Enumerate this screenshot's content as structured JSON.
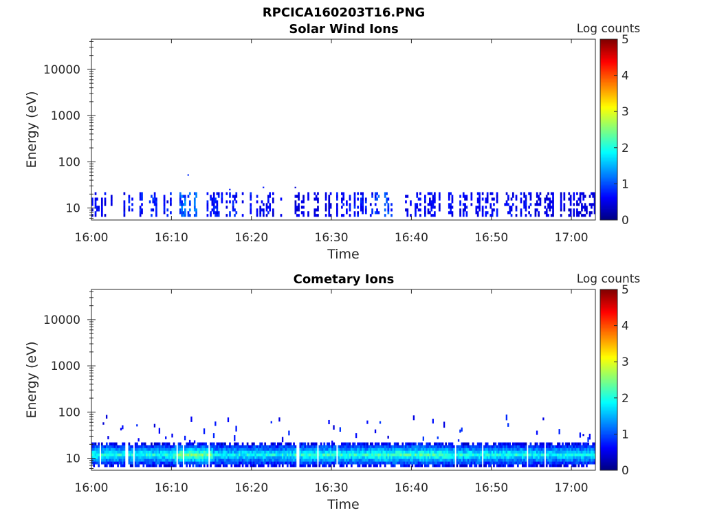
{
  "figure": {
    "title": "RPCICA160203T16.PNG"
  },
  "chart_data": [
    {
      "type": "heatmap",
      "title": "Solar Wind Ions",
      "xlabel": "Time",
      "ylabel": "Energy (eV)",
      "x_tick_labels": [
        "16:00",
        "16:10",
        "16:20",
        "16:30",
        "16:40",
        "16:50",
        "17:00"
      ],
      "y_tick_labels": [
        "10",
        "100",
        "1000",
        "10000"
      ],
      "y_scale": "log",
      "xlim": [
        "16:00",
        "17:03"
      ],
      "ylim": [
        5.5,
        45000
      ],
      "colorbar": {
        "label": "Log counts",
        "ticks": [
          "0",
          "1",
          "2",
          "3",
          "4",
          "5"
        ],
        "range": [
          0,
          5
        ],
        "colormap": "jet"
      },
      "band_eV": [
        6.5,
        22
      ],
      "level_segments": [
        {
          "start": "16:00",
          "end": "16:03",
          "level": 0.6
        },
        {
          "start": "16:04",
          "end": "16:10",
          "level": 0.7
        },
        {
          "start": "16:10",
          "end": "16:13",
          "level": 1.1
        },
        {
          "start": "16:14",
          "end": "16:20",
          "level": 0.7
        },
        {
          "start": "16:20",
          "end": "16:25",
          "level": 0.6
        },
        {
          "start": "16:25",
          "end": "16:30",
          "level": 0.5
        },
        {
          "start": "16:30",
          "end": "16:35",
          "level": 0.7
        },
        {
          "start": "16:35",
          "end": "16:38",
          "level": 0.9
        },
        {
          "start": "16:39",
          "end": "16:45",
          "level": 0.6
        },
        {
          "start": "16:45",
          "end": "16:55",
          "level": 0.6
        },
        {
          "start": "16:55",
          "end": "17:03",
          "level": 0.5
        }
      ],
      "gaps": [
        [
          "16:02.5",
          "16:04"
        ],
        [
          "16:38",
          "16:39"
        ]
      ]
    },
    {
      "type": "heatmap",
      "title": "Cometary Ions",
      "xlabel": "Time",
      "ylabel": "Energy (eV)",
      "x_tick_labels": [
        "16:00",
        "16:10",
        "16:20",
        "16:30",
        "16:40",
        "16:50",
        "17:00"
      ],
      "y_tick_labels": [
        "10",
        "100",
        "1000",
        "10000"
      ],
      "y_scale": "log",
      "xlim": [
        "16:00",
        "17:03"
      ],
      "ylim": [
        5.5,
        45000
      ],
      "colorbar": {
        "label": "Log counts",
        "ticks": [
          "0",
          "1",
          "2",
          "3",
          "4",
          "5"
        ],
        "range": [
          0,
          5
        ],
        "colormap": "jet"
      },
      "band_eV": [
        6.5,
        22
      ],
      "peak_energy_eV": 13,
      "level_segments": [
        {
          "start": "16:00",
          "end": "16:10",
          "level": 1.9
        },
        {
          "start": "16:10",
          "end": "16:15",
          "level": 2.3
        },
        {
          "start": "16:15",
          "end": "16:25",
          "level": 1.8
        },
        {
          "start": "16:25",
          "end": "16:35",
          "level": 2.0
        },
        {
          "start": "16:35",
          "end": "16:45",
          "level": 2.1
        },
        {
          "start": "16:45",
          "end": "16:55",
          "level": 1.9
        },
        {
          "start": "16:55",
          "end": "17:03",
          "level": 1.8
        }
      ],
      "sporadic_max_eV": 90
    }
  ]
}
